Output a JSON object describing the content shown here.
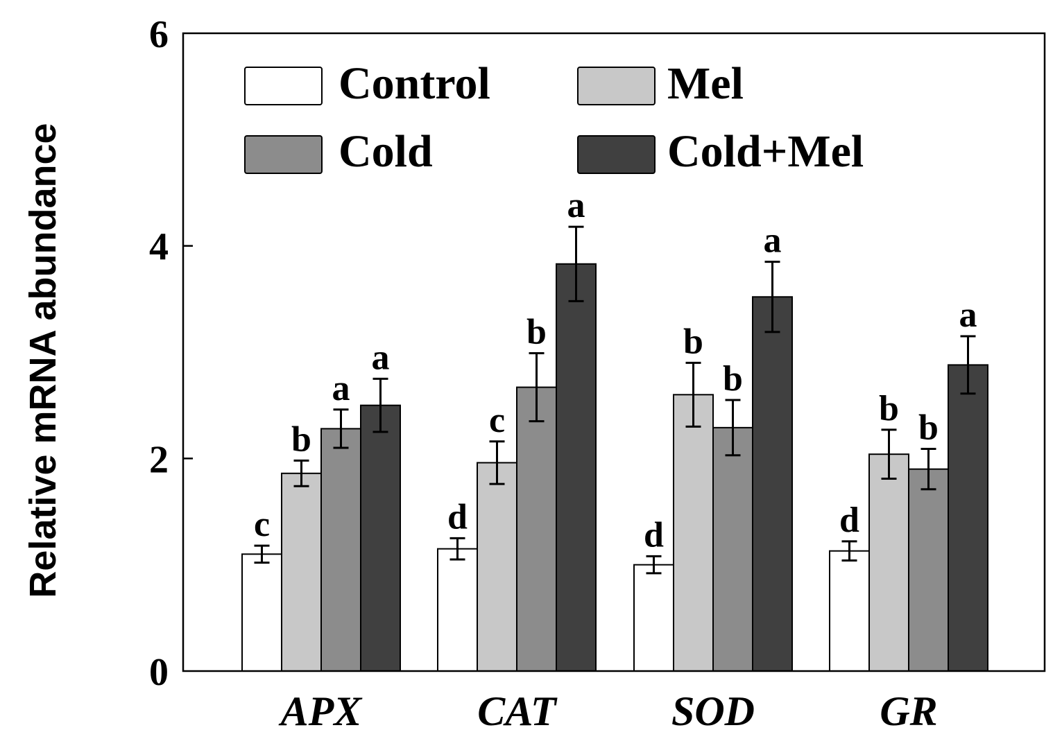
{
  "chart_data": {
    "type": "bar",
    "ylabel": "Relative mRNA abundance",
    "xlabel": "",
    "ylim": [
      0,
      6
    ],
    "yticks": [
      "0",
      "2",
      "4",
      "6"
    ],
    "categories": [
      "APX",
      "CAT",
      "SOD",
      "GR"
    ],
    "series": [
      {
        "name": "Control",
        "color": "#ffffff",
        "values": [
          1.1,
          1.15,
          1.0,
          1.13
        ],
        "errors": [
          0.08,
          0.1,
          0.08,
          0.09
        ],
        "labels": [
          "c",
          "d",
          "d",
          "d"
        ]
      },
      {
        "name": "Mel",
        "color": "#c8c8c8",
        "values": [
          1.86,
          1.96,
          2.6,
          2.04
        ],
        "errors": [
          0.12,
          0.2,
          0.3,
          0.23
        ],
        "labels": [
          "b",
          "c",
          "b",
          "b"
        ]
      },
      {
        "name": "Cold",
        "color": "#8c8c8c",
        "values": [
          2.28,
          2.67,
          2.29,
          1.9
        ],
        "errors": [
          0.18,
          0.32,
          0.26,
          0.19
        ],
        "labels": [
          "a",
          "b",
          "b",
          "b"
        ]
      },
      {
        "name": "Cold+Mel",
        "color": "#404040",
        "values": [
          2.5,
          3.83,
          3.52,
          2.88
        ],
        "errors": [
          0.25,
          0.35,
          0.33,
          0.27
        ],
        "labels": [
          "a",
          "a",
          "a",
          "a"
        ]
      }
    ],
    "legend": "top-left inside plot, 2 columns"
  }
}
